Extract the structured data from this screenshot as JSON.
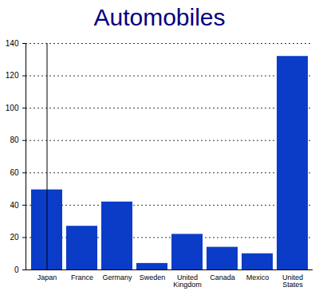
{
  "chart_data": {
    "type": "bar",
    "title": "Automobiles",
    "categories": [
      "Japan",
      "France",
      "Germany",
      "Sweden",
      "United Kingdom",
      "Canada",
      "Mexico",
      "United States"
    ],
    "values": [
      49.5,
      27,
      42,
      4,
      22,
      14,
      10,
      132
    ],
    "color": "#0a3cc8",
    "ylim": [
      0,
      140
    ],
    "yticks": [
      0,
      20,
      40,
      60,
      80,
      100,
      120,
      140
    ],
    "grid": true
  }
}
